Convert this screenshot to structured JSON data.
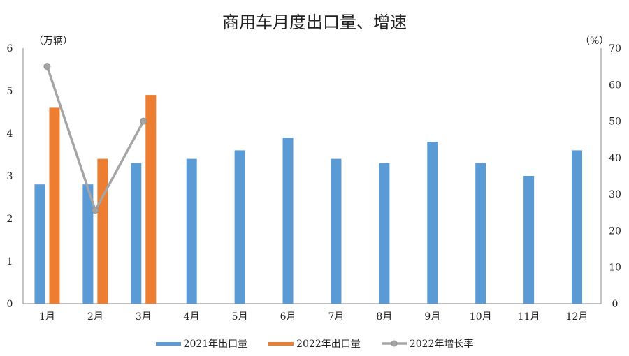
{
  "chart_data": {
    "type": "bar",
    "title": "商用车月度出口量、增速",
    "categories": [
      "1月",
      "2月",
      "3月",
      "4月",
      "5月",
      "6月",
      "7月",
      "8月",
      "9月",
      "10月",
      "11月",
      "12月"
    ],
    "series": [
      {
        "name": "2021年出口量",
        "type": "bar",
        "axis": "left",
        "color": "#5B9BD5",
        "values": [
          2.8,
          2.8,
          3.3,
          3.4,
          3.6,
          3.9,
          3.4,
          3.3,
          3.8,
          3.3,
          3.0,
          3.6
        ]
      },
      {
        "name": "2022年出口量",
        "type": "bar",
        "axis": "left",
        "color": "#ED7D31",
        "values": [
          4.6,
          3.4,
          4.9,
          null,
          null,
          null,
          null,
          null,
          null,
          null,
          null,
          null
        ]
      },
      {
        "name": "2022年增长率",
        "type": "line",
        "axis": "right",
        "color": "#A5A5A5",
        "values": [
          65.0,
          25.6,
          50.0,
          null,
          null,
          null,
          null,
          null,
          null,
          null,
          null,
          null
        ]
      }
    ],
    "ylabel": "（万辆）",
    "ylabel_right": "（%）",
    "ylim": [
      0,
      6
    ],
    "ylim_right": [
      0,
      70
    ],
    "yticks": [
      0,
      1,
      2,
      3,
      4,
      5,
      6
    ],
    "yticks_right": [
      0,
      10,
      20,
      30,
      40,
      50,
      60,
      70
    ],
    "grid": false,
    "legend_position": "bottom"
  }
}
